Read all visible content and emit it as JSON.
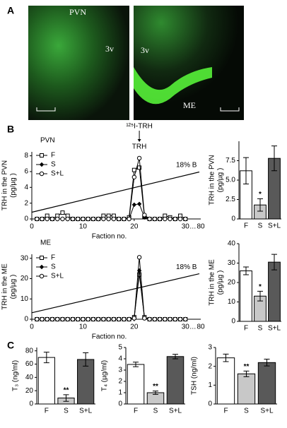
{
  "panel_labels": [
    "A",
    "B",
    "C"
  ],
  "image_labels": {
    "left": [
      "PVN",
      "3v"
    ],
    "right": [
      "3v",
      "ME"
    ]
  },
  "chart_data": [
    {
      "type": "line",
      "title": "PVN",
      "xlabel": "Faction no.",
      "ylabel": [
        "TRH in the PVN",
        "(pg/µg )"
      ],
      "x": [
        1,
        2,
        3,
        4,
        5,
        6,
        7,
        8,
        9,
        10,
        11,
        12,
        13,
        14,
        15,
        16,
        17,
        18,
        19,
        20,
        21,
        22,
        23,
        24,
        25,
        26,
        27,
        28,
        29,
        30
      ],
      "xlim": [
        0,
        33
      ],
      "xticks": [
        0,
        10,
        20,
        30
      ],
      "x_end_label": "80",
      "ylim": [
        0,
        8.5
      ],
      "yticks": [
        0,
        2,
        4,
        6,
        8
      ],
      "gradient_label": "18% B",
      "standard_label": "¹²⁵I-TRH",
      "peak_label": "TRH",
      "series": [
        {
          "name": "F",
          "marker": "square-open",
          "color": "#000000",
          "values": [
            0,
            0,
            0.4,
            0,
            0.4,
            0.8,
            0.4,
            0,
            0,
            0,
            0,
            0,
            0,
            0.4,
            0.4,
            0.4,
            0,
            0,
            0.2,
            6.2,
            6.5,
            0.3,
            0,
            0,
            0,
            0.4,
            0.2,
            0,
            0.4,
            0
          ]
        },
        {
          "name": "S",
          "marker": "diamond",
          "color": "#000000",
          "values": [
            0,
            0,
            0,
            0,
            0,
            0,
            0,
            0,
            0,
            0,
            0,
            0,
            0,
            0,
            0,
            0,
            0,
            0,
            0,
            1.8,
            1.9,
            0.2,
            0,
            0,
            0,
            0,
            0,
            0,
            0,
            0
          ]
        },
        {
          "name": "S+L",
          "marker": "circle-open",
          "color": "#000000",
          "values": [
            0,
            0,
            0,
            0,
            0,
            0,
            0,
            0,
            0,
            0,
            0,
            0,
            0,
            0,
            0,
            0,
            0,
            0,
            0,
            5.3,
            7.7,
            0.5,
            0,
            0,
            0,
            0,
            0,
            0,
            0,
            0
          ]
        }
      ]
    },
    {
      "type": "bar",
      "ylabel": [
        "TRH in the PVN",
        "(pg/µg )"
      ],
      "categories": [
        "F",
        "S",
        "S+L"
      ],
      "values": [
        6.2,
        1.8,
        7.8
      ],
      "errors": [
        1.7,
        0.8,
        1.6
      ],
      "significance": [
        null,
        "*",
        null
      ],
      "colors": [
        "#ffffff",
        "#c8c8c8",
        "#595959"
      ],
      "ylim": [
        0,
        10
      ],
      "yticks": [
        0,
        {
          "value": 2.5,
          "label": "2.5"
        },
        {
          "value": 5,
          "label": "5.0"
        },
        {
          "value": 7.5,
          "label": "7.5"
        }
      ]
    },
    {
      "type": "line",
      "title": "ME",
      "xlabel": "Faction no.",
      "ylabel": [
        "TRH in the ME",
        "(pg/µg )"
      ],
      "x": [
        1,
        2,
        3,
        4,
        5,
        6,
        7,
        8,
        9,
        10,
        11,
        12,
        13,
        14,
        15,
        16,
        17,
        18,
        19,
        20,
        21,
        22,
        23,
        24,
        25,
        26,
        27,
        28,
        29,
        30
      ],
      "xlim": [
        0,
        33
      ],
      "xticks": [
        0,
        10,
        20,
        30
      ],
      "x_end_label": "80",
      "ylim": [
        0,
        32
      ],
      "yticks": [
        0,
        10,
        20,
        30
      ],
      "gradient_label": "18% B",
      "series": [
        {
          "name": "F",
          "marker": "square-open",
          "color": "#000000",
          "values": [
            0,
            0,
            0,
            0,
            0,
            0,
            0,
            0,
            0,
            0,
            0,
            0,
            0,
            0,
            0,
            0,
            0,
            0,
            0,
            1,
            22,
            1,
            0,
            0,
            0,
            0,
            0,
            0,
            0,
            0
          ]
        },
        {
          "name": "S",
          "marker": "diamond",
          "color": "#000000",
          "values": [
            0,
            0,
            0,
            0,
            0,
            0,
            0,
            0,
            0,
            0,
            0,
            0,
            0,
            0,
            0,
            0,
            0,
            0,
            0,
            0.5,
            24,
            0.5,
            0,
            0,
            0,
            0,
            0,
            0,
            0,
            0
          ]
        },
        {
          "name": "S+L",
          "marker": "circle-open",
          "color": "#000000",
          "values": [
            0,
            0,
            0,
            0,
            0,
            0,
            0,
            0,
            0,
            0,
            0,
            0,
            0,
            0,
            0,
            0,
            0,
            0,
            0,
            0.5,
            30.5,
            0.5,
            0,
            0,
            0,
            0,
            0,
            0,
            0,
            0
          ]
        }
      ]
    },
    {
      "type": "bar",
      "ylabel": [
        "TRH in the ME",
        "(pg/µg )"
      ],
      "categories": [
        "F",
        "S",
        "S+L"
      ],
      "values": [
        26,
        13,
        30.5
      ],
      "errors": [
        2,
        2.5,
        4
      ],
      "significance": [
        null,
        "*",
        null
      ],
      "colors": [
        "#ffffff",
        "#c8c8c8",
        "#595959"
      ],
      "ylim": [
        0,
        40
      ],
      "yticks": [
        0,
        10,
        20,
        30,
        40
      ]
    },
    {
      "type": "bar",
      "ylabel": [
        "T₃ (ng/ml)"
      ],
      "categories": [
        "F",
        "S",
        "S+L"
      ],
      "values": [
        70,
        9,
        67
      ],
      "errors": [
        8,
        5,
        10
      ],
      "significance": [
        null,
        "**",
        null
      ],
      "colors": [
        "#ffffff",
        "#c8c8c8",
        "#595959"
      ],
      "ylim": [
        0,
        85
      ],
      "yticks": [
        0,
        20,
        40,
        60,
        80
      ]
    },
    {
      "type": "bar",
      "ylabel": [
        "T₄ (µg/ml)"
      ],
      "categories": [
        "F",
        "S",
        "S+L"
      ],
      "values": [
        3.5,
        1.0,
        4.2
      ],
      "errors": [
        0.2,
        0.15,
        0.2
      ],
      "significance": [
        null,
        "**",
        null
      ],
      "colors": [
        "#ffffff",
        "#c8c8c8",
        "#595959"
      ],
      "ylim": [
        0,
        5
      ],
      "yticks": [
        0,
        1,
        2,
        3,
        4,
        5
      ]
    },
    {
      "type": "bar",
      "ylabel": [
        "TSH (ng/ml)"
      ],
      "categories": [
        "F",
        "S",
        "S+L"
      ],
      "values": [
        2.45,
        1.6,
        2.2
      ],
      "errors": [
        0.2,
        0.15,
        0.18
      ],
      "significance": [
        null,
        "**",
        null
      ],
      "colors": [
        "#ffffff",
        "#c8c8c8",
        "#595959"
      ],
      "ylim": [
        0,
        3
      ],
      "yticks": [
        0,
        1,
        2,
        3
      ]
    }
  ]
}
